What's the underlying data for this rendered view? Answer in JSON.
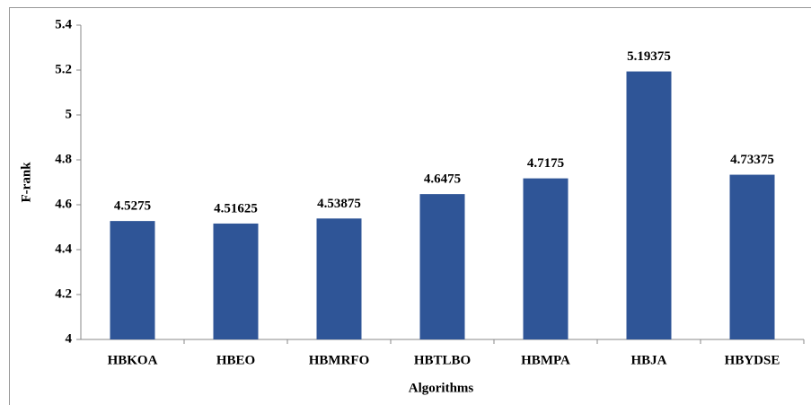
{
  "chart_data": {
    "type": "bar",
    "x_label": "Algorithms",
    "y_label": "F-rank",
    "categories": [
      "HBKOA",
      "HBEO",
      "HBMRFO",
      "HBTLBO",
      "HBMPA",
      "HBJA",
      "HBYDSE"
    ],
    "values": [
      4.5275,
      4.51625,
      4.53875,
      4.6475,
      4.7175,
      5.19375,
      4.73375
    ],
    "color": "#2f5597",
    "ylim": [
      4,
      5.4
    ],
    "yticks": [
      4,
      4.2,
      4.4,
      4.6,
      4.8,
      5,
      5.2,
      5.4
    ],
    "grid": false
  }
}
